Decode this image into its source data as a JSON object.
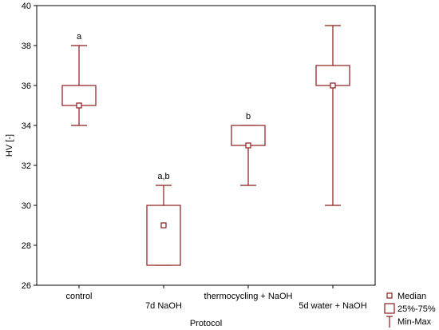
{
  "chart_data": {
    "type": "box",
    "xlabel": "Protocol",
    "ylabel": "HV [-]",
    "ylim": [
      26,
      40
    ],
    "yticks": [
      26,
      28,
      30,
      32,
      34,
      36,
      38,
      40
    ],
    "grid": false,
    "legend_position": "bottom-right",
    "categories": [
      "control",
      "7d NaOH",
      "thermocycling + NaOH",
      "5d water + NaOH"
    ],
    "boxes": [
      {
        "category": "control",
        "min": 34,
        "q1": 35,
        "median": 35,
        "q3": 36,
        "max": 38,
        "annotation": "a"
      },
      {
        "category": "7d NaOH",
        "min": 27,
        "q1": 27,
        "median": 29,
        "q3": 30,
        "max": 31,
        "annotation": "a,b"
      },
      {
        "category": "thermocycling + NaOH",
        "min": 31,
        "q1": 33,
        "median": 33,
        "q3": 34,
        "max": 34,
        "annotation": "b"
      },
      {
        "category": "5d water + NaOH",
        "min": 30,
        "q1": 36,
        "median": 36,
        "q3": 37,
        "max": 39,
        "annotation": ""
      }
    ],
    "legend": [
      "Median",
      "25%-75%",
      "Min-Max"
    ],
    "color": "#8b1a1a"
  }
}
